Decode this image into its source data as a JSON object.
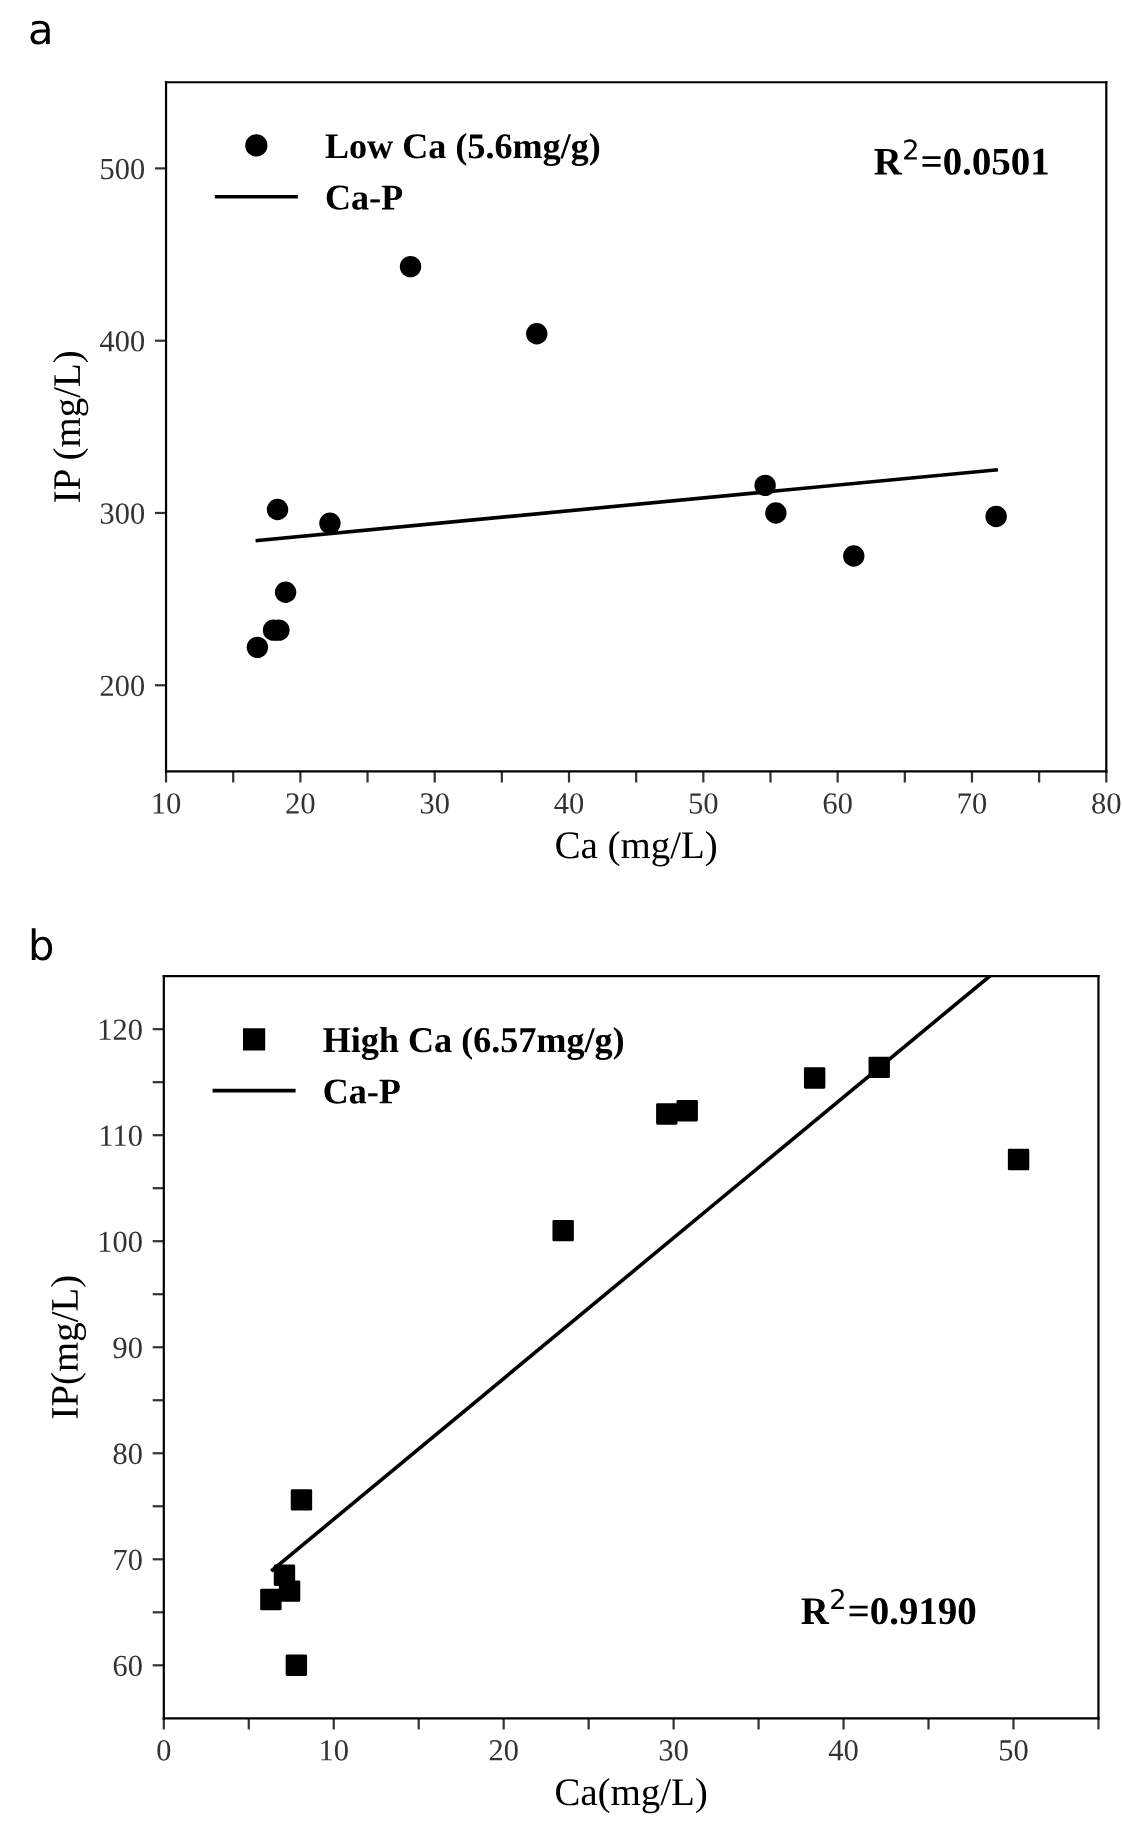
{
  "chart_data": [
    {
      "type": "scatter",
      "xlabel": "Ca (mg/L)",
      "ylabel": "IP (mg/L)",
      "annotations": [
        "a",
        "R$^{2}$=0.0501"
      ],
      "xlim": [
        10,
        80
      ],
      "ylim": [
        150,
        550
      ],
      "xticks": [
        10,
        {
          "value": 15,
          "label": null
        },
        20,
        {
          "value": 25,
          "label": null
        },
        30,
        {
          "value": 35,
          "label": null
        },
        40,
        {
          "value": 45,
          "label": null
        },
        50,
        {
          "value": 55,
          "label": null
        },
        60,
        {
          "value": 65,
          "label": null
        },
        70,
        {
          "value": 75,
          "label": null
        },
        80
      ],
      "yticks": [
        200,
        300,
        400,
        500
      ],
      "legend": "top left",
      "grid": false,
      "series": [
        {
          "name": "Low Ca (5.6mg/g)",
          "marker": "circle",
          "color": "#000000",
          "x": [
            16.8,
            18.0,
            18.4,
            18.9,
            18.3,
            22.2,
            28.2,
            37.6,
            54.6,
            55.4,
            61.2,
            71.8
          ],
          "values": [
            222,
            232,
            232,
            254,
            302,
            294,
            443,
            404,
            316,
            300,
            275,
            298
          ]
        },
        {
          "name": "Ca-P",
          "type": "line",
          "marker": "none",
          "line_style": "solid",
          "color": "#000000",
          "x": [
            16.8,
            71.8
          ],
          "values": [
            284,
            325
          ]
        }
      ]
    },
    {
      "type": "scatter",
      "xlabel": "Ca(mg/L)",
      "ylabel": "IP(mg/L)",
      "annotations": [
        "b",
        "R$^{2}$=0.9190"
      ],
      "xlim": [
        0,
        55
      ],
      "ylim": [
        55,
        125
      ],
      "xticks": [
        0,
        {
          "value": 5,
          "label": null
        },
        10,
        {
          "value": 15,
          "label": null
        },
        20,
        {
          "value": 25,
          "label": null
        },
        30,
        {
          "value": 35,
          "label": null
        },
        40,
        {
          "value": 45,
          "label": null
        },
        50,
        {
          "value": 55,
          "label": null
        }
      ],
      "yticks": [
        60,
        {
          "value": 65,
          "label": null
        },
        70,
        {
          "value": 75,
          "label": null
        },
        80,
        {
          "value": 85,
          "label": null
        },
        90,
        {
          "value": 95,
          "label": null
        },
        100,
        {
          "value": 105,
          "label": null
        },
        110,
        {
          "value": 115,
          "label": null
        },
        120
      ],
      "legend": "top left",
      "grid": false,
      "series": [
        {
          "name": "High Ca (6.57mg/g)",
          "marker": "square",
          "color": "#000000",
          "x": [
            6.3,
            7.1,
            7.4,
            7.8,
            8.1,
            23.5,
            29.6,
            30.8,
            38.3,
            42.1,
            50.3
          ],
          "values": [
            66.2,
            68.5,
            67.0,
            60.0,
            75.6,
            101.0,
            112.0,
            112.3,
            115.4,
            116.4,
            107.7
          ]
        },
        {
          "name": "Ca-P",
          "type": "line",
          "marker": "none",
          "line_style": "solid",
          "color": "#000000",
          "x": [
            6.4,
            48.6
          ],
          "values": [
            69,
            125
          ]
        }
      ]
    }
  ]
}
